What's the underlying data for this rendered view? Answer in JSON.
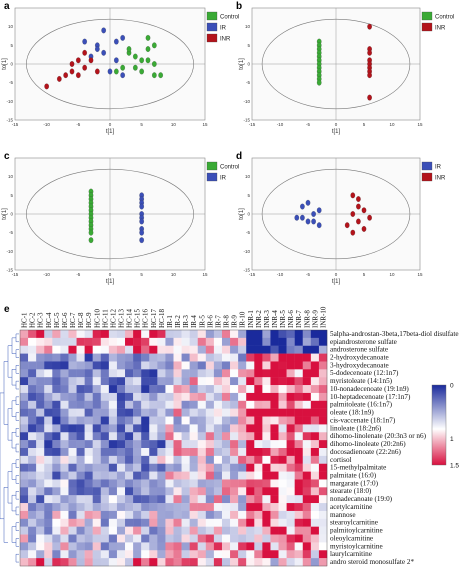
{
  "colors": {
    "Control": "#3aaa35",
    "IR": "#3b4fb8",
    "INR": "#b3131b",
    "hm_low": "#1a2a9c",
    "hm_mid": "#ffffff",
    "hm_high": "#d8103f"
  },
  "panels": [
    {
      "letter": "a",
      "groups": [
        "Control",
        "IR",
        "INR"
      ],
      "xlabel": "t[1]",
      "ylabel": "to[1]",
      "xticks": [
        "-15",
        "-10",
        "-5",
        "0",
        "5",
        "10",
        "15"
      ],
      "yticks": [
        "10",
        "5",
        "0",
        "-5",
        "-10",
        "-15"
      ],
      "xlim": [
        -15,
        15
      ],
      "ylim": [
        -15,
        15
      ],
      "points": {
        "Control": [
          [
            6,
            7
          ],
          [
            7,
            5
          ],
          [
            6,
            4
          ],
          [
            3,
            3
          ],
          [
            4,
            2
          ],
          [
            5,
            1
          ],
          [
            6,
            1
          ],
          [
            4,
            -1
          ],
          [
            2,
            -1
          ],
          [
            5,
            -2
          ],
          [
            7,
            -3
          ],
          [
            8,
            -3
          ],
          [
            3,
            4
          ],
          [
            1,
            -2
          ],
          [
            7,
            0
          ]
        ],
        "IR": [
          [
            -1,
            9
          ],
          [
            -2,
            5
          ],
          [
            1,
            6
          ],
          [
            2,
            7
          ],
          [
            -4,
            6
          ],
          [
            -1,
            3
          ],
          [
            -3,
            2
          ],
          [
            1,
            1
          ],
          [
            2,
            -3
          ],
          [
            0,
            -2
          ],
          [
            -2,
            4
          ]
        ],
        "INR": [
          [
            -10,
            -6
          ],
          [
            -7,
            -3
          ],
          [
            -6,
            -2
          ],
          [
            -5,
            -3
          ],
          [
            -4,
            -1
          ],
          [
            -3,
            1
          ],
          [
            -6,
            0
          ],
          [
            -5,
            1
          ],
          [
            -4,
            3
          ],
          [
            -2,
            -2
          ],
          [
            -8,
            -4
          ]
        ]
      }
    },
    {
      "letter": "b",
      "groups": [
        "Control",
        "INR"
      ],
      "xlabel": "t[1]",
      "ylabel": "to[1]",
      "xticks": [
        "-15",
        "-10",
        "-5",
        "0",
        "5",
        "10",
        "15"
      ],
      "yticks": [
        "10",
        "5",
        "0",
        "-5",
        "-10",
        "-15"
      ],
      "xlim": [
        -15,
        15
      ],
      "ylim": [
        -15,
        15
      ],
      "points": {
        "Control": [
          [
            -3,
            6
          ],
          [
            -3,
            5
          ],
          [
            -3,
            4
          ],
          [
            -3,
            3
          ],
          [
            -3,
            2
          ],
          [
            -3,
            1
          ],
          [
            -3,
            0
          ],
          [
            -3,
            -1
          ],
          [
            -3,
            -2
          ],
          [
            -3,
            -3
          ],
          [
            -3,
            -4
          ],
          [
            -3,
            -5
          ]
        ],
        "INR": [
          [
            6,
            10
          ],
          [
            6,
            4
          ],
          [
            6,
            3
          ],
          [
            6,
            1
          ],
          [
            6,
            0
          ],
          [
            6,
            -1
          ],
          [
            6,
            -2
          ],
          [
            6,
            -3
          ],
          [
            6,
            -9
          ]
        ]
      }
    },
    {
      "letter": "c",
      "groups": [
        "Control",
        "IR"
      ],
      "xlabel": "t[1]",
      "ylabel": "to[1]",
      "xticks": [
        "-15",
        "-10",
        "-5",
        "0",
        "5",
        "10",
        "15"
      ],
      "yticks": [
        "10",
        "5",
        "0",
        "-5",
        "-10",
        "-15"
      ],
      "xlim": [
        -15,
        15
      ],
      "ylim": [
        -15,
        15
      ],
      "points": {
        "Control": [
          [
            -3,
            6
          ],
          [
            -3,
            5
          ],
          [
            -3,
            4
          ],
          [
            -3,
            3
          ],
          [
            -3,
            2
          ],
          [
            -3,
            1
          ],
          [
            -3,
            0
          ],
          [
            -3,
            -1
          ],
          [
            -3,
            -2
          ],
          [
            -3,
            -3
          ],
          [
            -3,
            -4
          ],
          [
            -3,
            -5
          ],
          [
            -3,
            -7
          ]
        ],
        "IR": [
          [
            5,
            5
          ],
          [
            5,
            4
          ],
          [
            5,
            3
          ],
          [
            5,
            2
          ],
          [
            5,
            0
          ],
          [
            5,
            -1
          ],
          [
            5,
            -2
          ],
          [
            5,
            -4
          ],
          [
            5,
            -5
          ],
          [
            5,
            -7
          ]
        ]
      }
    },
    {
      "letter": "d",
      "groups": [
        "IR",
        "INR"
      ],
      "xlabel": "t[1]",
      "ylabel": "to[1]",
      "xticks": [
        "-15",
        "-10",
        "-5",
        "0",
        "5",
        "10",
        "15"
      ],
      "yticks": [
        "10",
        "5",
        "0",
        "-5",
        "-10",
        "-15"
      ],
      "xlim": [
        -15,
        15
      ],
      "ylim": [
        -15,
        15
      ],
      "points": {
        "IR": [
          [
            -6,
            2
          ],
          [
            -5,
            3
          ],
          [
            -6,
            -1
          ],
          [
            -5,
            -2
          ],
          [
            -4,
            0
          ],
          [
            -3,
            1
          ],
          [
            -4,
            -2
          ],
          [
            -7,
            -1
          ],
          [
            -3,
            -3
          ]
        ],
        "INR": [
          [
            3,
            5
          ],
          [
            4,
            2
          ],
          [
            3,
            0
          ],
          [
            5,
            1
          ],
          [
            4,
            -2
          ],
          [
            6,
            -1
          ],
          [
            2,
            -3
          ],
          [
            5,
            -4
          ],
          [
            3,
            -5
          ],
          [
            4,
            4
          ]
        ]
      }
    }
  ],
  "chart_data": {
    "type": "heatmap",
    "panel_letter": "e",
    "columns": [
      "HC-1",
      "HC-2",
      "HC-3",
      "HC-4",
      "HC-5",
      "HC-6",
      "HC-7",
      "HC-8",
      "HC-9",
      "HC-10",
      "HC-11",
      "HC-12",
      "HC-13",
      "HC-14",
      "HC-15",
      "HC-16",
      "HC-17",
      "HC-18",
      "IR-1",
      "IR-2",
      "IR-3",
      "IR-4",
      "IR-5",
      "IR-6",
      "IR-7",
      "IR-8",
      "IR-9",
      "IR-10",
      "INR-1",
      "INR-2",
      "INR-3",
      "INR-4",
      "INR-5",
      "INR-6",
      "INR-7",
      "INR-8",
      "INR-9",
      "INR-10"
    ],
    "rows": [
      "5alpha-androstan-3beta,17beta-diol disulfate",
      "epiandrosterone sulfate",
      "androsterone sulfate",
      "2-hydroxydecanoate",
      "3-hydroxydecanoate",
      "5-dodecenoate (12:1n7)",
      "myristoleate (14:1n5)",
      "10-nonadecenoate (19:1n9)",
      "10-heptadecenoate (17:1n7)",
      "palmitoleate (16:1n7)",
      "oleate (18:1n9)",
      "cis-vaccenate (18:1n7)",
      "linoleate (18:2n6)",
      "dihomo-linolenate (20:3n3 or n6)",
      "dihomo-linoleate (20:2n6)",
      "docosadienoate (22:2n6)",
      "cortisol",
      "15-methylpalmitate",
      "palmitate (16:0)",
      "margarate (17:0)",
      "stearate (18:0)",
      "nonadecanoate (19:0)",
      "acetylcarnitine",
      "mannose",
      "stearoylcarnitine",
      "palmitoylcarnitine",
      "oleoylcarnitine",
      "myristoylcarnitine",
      "laurylcarnitine",
      "andro steroid monosulfate 2*"
    ],
    "colorbar": {
      "ticks": [
        "0",
        "1",
        "1.5"
      ],
      "range": [
        0,
        1.5
      ]
    },
    "group_profile": {
      "note": "values in colorbar units (0 low blue, 1 white, 1.5 high red)",
      "HC": [
        1.2,
        1.2,
        1.2,
        0.5,
        0.5,
        0.5,
        0.5,
        0.5,
        0.5,
        0.5,
        0.5,
        0.5,
        0.5,
        0.5,
        0.5,
        0.5,
        0.7,
        0.6,
        0.6,
        0.6,
        0.6,
        0.6,
        0.7,
        0.8,
        0.8,
        0.8,
        0.8,
        0.8,
        0.8,
        1.1
      ],
      "IR": [
        0.9,
        0.9,
        0.9,
        0.8,
        0.8,
        0.9,
        0.9,
        0.9,
        0.9,
        0.9,
        0.9,
        0.9,
        0.9,
        0.9,
        0.9,
        0.9,
        0.9,
        0.9,
        0.9,
        0.9,
        0.9,
        0.9,
        1.0,
        0.9,
        1.0,
        1.0,
        1.0,
        1.0,
        1.0,
        1.0
      ],
      "INR": [
        0.2,
        0.2,
        0.2,
        1.4,
        1.4,
        1.4,
        1.4,
        1.4,
        1.4,
        1.4,
        1.4,
        1.4,
        1.3,
        1.3,
        1.3,
        1.3,
        1.2,
        1.3,
        1.3,
        1.3,
        1.3,
        1.3,
        1.2,
        1.2,
        1.2,
        1.2,
        1.2,
        1.2,
        1.2,
        0.8
      ]
    }
  }
}
